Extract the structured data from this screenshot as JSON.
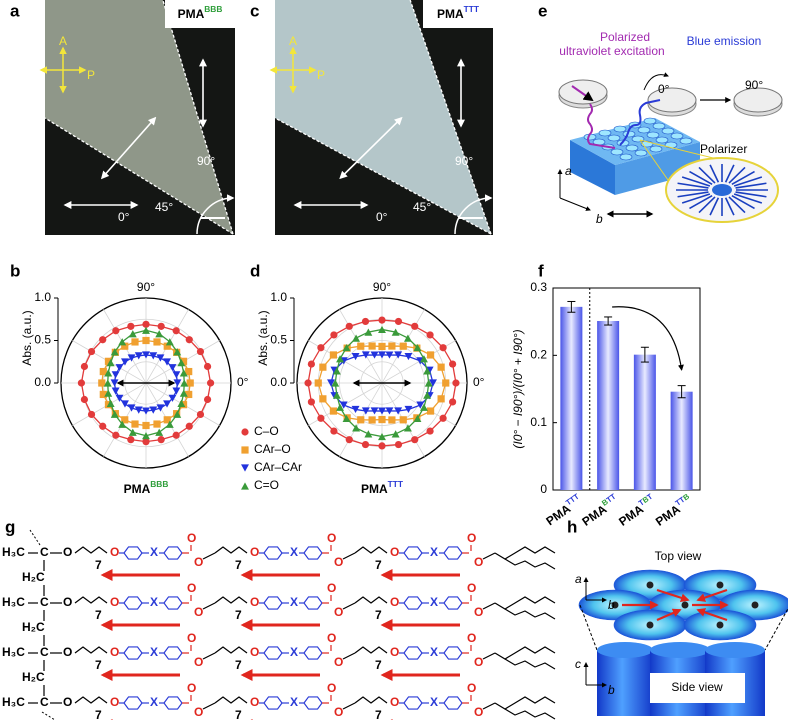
{
  "letter_colors": {
    "B": "#2e9e3a",
    "T": "#2a3bd6"
  },
  "panel_labels": [
    "a",
    "b",
    "c",
    "d",
    "e",
    "f",
    "g",
    "h"
  ],
  "micrographs": [
    {
      "name": "PMA",
      "sup": "BBB",
      "analyzer": "A",
      "polarizer": "P",
      "angles": [
        "90°",
        "45°",
        "0°"
      ],
      "color": "#8f9789"
    },
    {
      "name": "PMA",
      "sup": "TTT",
      "analyzer": "A",
      "polarizer": "P",
      "angles": [
        "90°",
        "45°",
        "0°"
      ],
      "color": "#b4c6c9"
    }
  ],
  "schematic_e": {
    "excitation": [
      "Polarized",
      "ultraviolet excitation"
    ],
    "emission": "Blue emission",
    "angles": [
      "0°",
      "90°"
    ],
    "polarizer": "Polarizer",
    "axes": [
      "a",
      "b"
    ]
  },
  "chart_data": [
    {
      "type": "polar",
      "name": "PMA",
      "name_sup": "BBB",
      "angle_labels": [
        "90°",
        "0°"
      ],
      "r_label": "Abs. (a.u.)",
      "rlim": [
        0,
        1
      ],
      "rticks": [
        {
          "value": 0,
          "label": "0.0"
        },
        0.5,
        {
          "value": 1,
          "label": "1.0"
        }
      ],
      "legend": "right",
      "theta": [
        0,
        15,
        30,
        45,
        60,
        75,
        90,
        105,
        120,
        135,
        150,
        165,
        180,
        195,
        210,
        225,
        240,
        255,
        270,
        285,
        300,
        315,
        330,
        345
      ],
      "series": [
        {
          "name": "C–O",
          "color": "#e23b3b",
          "marker": "circle",
          "values": [
            0.76,
            0.75,
            0.74,
            0.72,
            0.71,
            0.69,
            0.69,
            0.69,
            0.71,
            0.72,
            0.74,
            0.75,
            0.76,
            0.75,
            0.74,
            0.72,
            0.71,
            0.69,
            0.69,
            0.69,
            0.71,
            0.72,
            0.74,
            0.75
          ]
        },
        {
          "name": "CAr–O",
          "color": "#f0a030",
          "marker": "square",
          "values": [
            0.52,
            0.52,
            0.51,
            0.51,
            0.5,
            0.5,
            0.5,
            0.5,
            0.5,
            0.51,
            0.51,
            0.52,
            0.52,
            0.52,
            0.51,
            0.51,
            0.5,
            0.5,
            0.5,
            0.5,
            0.5,
            0.51,
            0.51,
            0.52
          ]
        },
        {
          "name": "CAr–CAr",
          "color": "#2233dd",
          "marker": "triangle-down",
          "values": [
            0.37,
            0.37,
            0.36,
            0.35,
            0.34,
            0.33,
            0.33,
            0.33,
            0.34,
            0.35,
            0.36,
            0.37,
            0.37,
            0.37,
            0.36,
            0.35,
            0.34,
            0.33,
            0.33,
            0.33,
            0.34,
            0.35,
            0.36,
            0.37
          ]
        },
        {
          "name": "C=O",
          "color": "#3a9a3a",
          "marker": "triangle-up",
          "values": [
            0.45,
            0.46,
            0.48,
            0.52,
            0.56,
            0.6,
            0.62,
            0.6,
            0.56,
            0.52,
            0.48,
            0.46,
            0.45,
            0.46,
            0.48,
            0.52,
            0.56,
            0.6,
            0.62,
            0.6,
            0.56,
            0.52,
            0.48,
            0.46
          ]
        }
      ]
    },
    {
      "type": "polar",
      "name": "PMA",
      "name_sup": "TTT",
      "angle_labels": [
        "90°",
        "0°"
      ],
      "r_label": "Abs. (a.u.)",
      "rlim": [
        0,
        1
      ],
      "rticks": [
        {
          "value": 0,
          "label": "0.0"
        },
        0.5,
        {
          "value": 1,
          "label": "1.0"
        }
      ],
      "theta": [
        0,
        15,
        30,
        45,
        60,
        75,
        90,
        105,
        120,
        135,
        150,
        165,
        180,
        195,
        210,
        225,
        240,
        255,
        270,
        285,
        300,
        315,
        330,
        345
      ],
      "series": [
        {
          "color": "#e23b3b",
          "marker": "circle",
          "values": [
            0.87,
            0.86,
            0.83,
            0.8,
            0.77,
            0.75,
            0.74,
            0.75,
            0.77,
            0.8,
            0.83,
            0.86,
            0.87,
            0.86,
            0.83,
            0.8,
            0.77,
            0.75,
            0.74,
            0.75,
            0.77,
            0.8,
            0.83,
            0.86
          ]
        },
        {
          "color": "#f0a030",
          "marker": "square",
          "values": [
            0.75,
            0.72,
            0.66,
            0.58,
            0.5,
            0.45,
            0.43,
            0.45,
            0.5,
            0.58,
            0.66,
            0.72,
            0.75,
            0.72,
            0.66,
            0.58,
            0.5,
            0.45,
            0.43,
            0.45,
            0.5,
            0.58,
            0.66,
            0.72
          ]
        },
        {
          "color": "#2233dd",
          "marker": "triangle-down",
          "values": [
            0.6,
            0.58,
            0.52,
            0.44,
            0.38,
            0.34,
            0.33,
            0.34,
            0.38,
            0.44,
            0.52,
            0.58,
            0.6,
            0.58,
            0.52,
            0.44,
            0.38,
            0.34,
            0.33,
            0.34,
            0.38,
            0.44,
            0.52,
            0.58
          ]
        },
        {
          "color": "#3a9a3a",
          "marker": "triangle-up",
          "values": [
            0.55,
            0.55,
            0.57,
            0.59,
            0.61,
            0.62,
            0.63,
            0.62,
            0.61,
            0.59,
            0.57,
            0.55,
            0.55,
            0.55,
            0.57,
            0.59,
            0.61,
            0.62,
            0.63,
            0.62,
            0.61,
            0.59,
            0.57,
            0.55
          ]
        }
      ]
    },
    {
      "type": "bar",
      "categories": [
        "PMA",
        "PMA",
        "PMA",
        "PMA"
      ],
      "category_sups": [
        "TTT",
        "BTT",
        "TBT",
        "TTB"
      ],
      "values": [
        0.272,
        0.251,
        0.201,
        0.146
      ],
      "errors": [
        0.008,
        0.006,
        0.011,
        0.009
      ],
      "y_label": "(I0° − I90°)/(I0° + I90°)",
      "ylim": [
        0,
        0.3
      ],
      "yticks": [
        0,
        0.1,
        0.2,
        0.3
      ],
      "color": "#4a55e8"
    }
  ],
  "structure_g": {
    "methyl": "H₃C",
    "methylene": "H₂C",
    "carbon": "C",
    "oxygen": "O",
    "linker": "X",
    "spacer": "7"
  },
  "schematic_h": {
    "top": "Top view",
    "side": "Side view",
    "top_axes": [
      "a",
      "b"
    ],
    "side_axes": [
      "c",
      "b"
    ]
  }
}
